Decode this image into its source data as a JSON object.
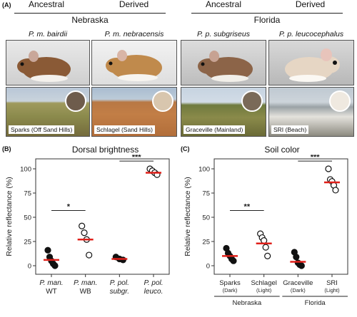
{
  "panel_a": {
    "letter": "(A)",
    "groups": [
      {
        "ancestral": "Ancestral",
        "derived": "Derived",
        "region": "Nebraska"
      },
      {
        "ancestral": "Ancestral",
        "derived": "Derived",
        "region": "Florida"
      }
    ],
    "subspecies": [
      "P. m. bairdii",
      "P. m. nebracensis",
      "P. p. subgriseus",
      "P. p. leucocephalus"
    ],
    "sites": [
      "Sparks (Off Sand Hills)",
      "Schlagel (Sand Hills)",
      "Graceville (Mainland)",
      "SRI (Beach)"
    ],
    "colors": {
      "mouse_fur": [
        "#8a5a36",
        "#c08a4c",
        "#8c6448",
        "#e6d6c4"
      ],
      "soil_circle": [
        "#6e5c4c",
        "#d8c6ae",
        "#7a6a58",
        "#efe9e0"
      ]
    }
  },
  "chart_data": [
    {
      "letter": "(B)",
      "type": "scatter",
      "title": "Dorsal brightness",
      "ylabel": "Relative reflectance (%)",
      "ylim": [
        0,
        100
      ],
      "yticks": [
        0,
        25,
        50,
        75,
        100
      ],
      "categories": [
        {
          "line1": "P. man.",
          "line2": "WT",
          "italic2": false
        },
        {
          "line1": "P. man.",
          "line2": "WB",
          "italic2": false
        },
        {
          "line1": "P. pol.",
          "line2": "subgr.",
          "italic2": true
        },
        {
          "line1": "P. pol.",
          "line2": "leuco.",
          "italic2": true
        }
      ],
      "points": [
        [
          0,
          16,
          "filled"
        ],
        [
          0,
          9,
          "filled"
        ],
        [
          0,
          5,
          "filled"
        ],
        [
          0,
          2,
          "filled"
        ],
        [
          0,
          0,
          "filled"
        ],
        [
          1,
          41,
          "open"
        ],
        [
          1,
          34,
          "open"
        ],
        [
          1,
          27,
          "open"
        ],
        [
          1,
          11,
          "open"
        ],
        [
          2,
          9,
          "filled"
        ],
        [
          2,
          7,
          "filled"
        ],
        [
          2,
          6,
          "filled"
        ],
        [
          3,
          100,
          "open"
        ],
        [
          3,
          98,
          "open"
        ],
        [
          3,
          96,
          "open"
        ],
        [
          3,
          94,
          "open"
        ]
      ],
      "means": [
        6,
        27,
        7,
        96
      ],
      "significance": [
        {
          "from": 0,
          "to": 1,
          "label": "*",
          "y": 57
        },
        {
          "from": 2,
          "to": 3,
          "label": "***",
          "y": 108
        }
      ]
    },
    {
      "letter": "(C)",
      "type": "scatter",
      "title": "Soil color",
      "ylabel": "Relative reflectance (%)",
      "ylim": [
        0,
        100
      ],
      "yticks": [
        0,
        25,
        50,
        75,
        100
      ],
      "categories": [
        {
          "line1": "Sparks",
          "line2": "(Dark)"
        },
        {
          "line1": "Schlagel",
          "line2": "(Light)"
        },
        {
          "line1": "Graceville",
          "line2": "(Dark)"
        },
        {
          "line1": "SRI",
          "line2": "(Light)"
        }
      ],
      "groups": [
        {
          "label": "Nebraska",
          "from": 0,
          "to": 1
        },
        {
          "label": "Florida",
          "from": 2,
          "to": 3
        }
      ],
      "points": [
        [
          0,
          18,
          "filled"
        ],
        [
          0,
          13,
          "filled"
        ],
        [
          0,
          10,
          "filled"
        ],
        [
          0,
          7,
          "filled"
        ],
        [
          0,
          5,
          "filled"
        ],
        [
          1,
          33,
          "open"
        ],
        [
          1,
          29,
          "open"
        ],
        [
          1,
          26,
          "open"
        ],
        [
          1,
          19,
          "open"
        ],
        [
          1,
          10,
          "open"
        ],
        [
          2,
          14,
          "filled"
        ],
        [
          2,
          9,
          "filled"
        ],
        [
          2,
          3,
          "filled"
        ],
        [
          2,
          1,
          "filled"
        ],
        [
          2,
          0,
          "filled"
        ],
        [
          3,
          100,
          "open"
        ],
        [
          3,
          89,
          "open"
        ],
        [
          3,
          87,
          "open"
        ],
        [
          3,
          83,
          "open"
        ],
        [
          3,
          78,
          "open"
        ]
      ],
      "means": [
        10,
        23,
        4,
        86
      ],
      "significance": [
        {
          "from": 0,
          "to": 1,
          "label": "**",
          "y": 57
        },
        {
          "from": 2,
          "to": 3,
          "label": "***",
          "y": 108
        }
      ]
    }
  ]
}
